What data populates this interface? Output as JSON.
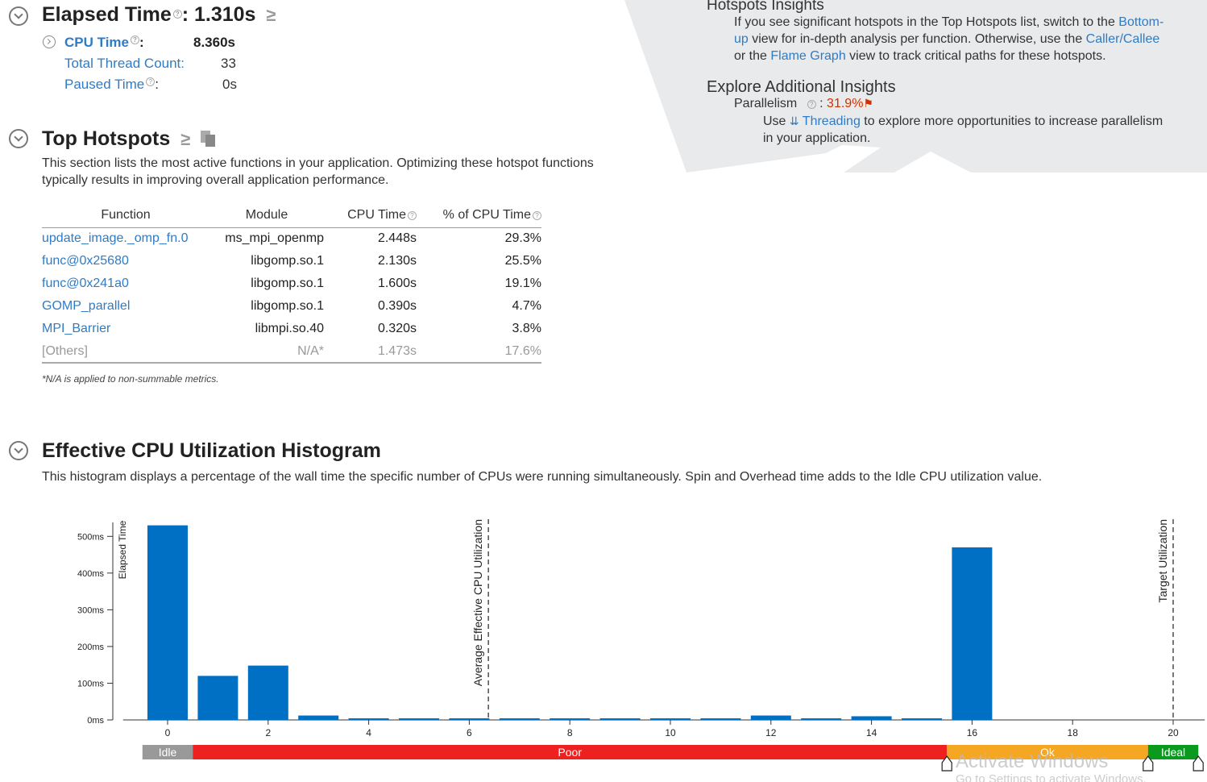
{
  "summary": {
    "elapsed_label": "Elapsed Time",
    "elapsed_value": ": 1.310s",
    "cpu_time_label": "CPU Time",
    "cpu_time_value": "8.360s",
    "thread_count_label": "Total Thread Count:",
    "thread_count_value": "33",
    "paused_label": "Paused Time",
    "paused_value": "0s"
  },
  "insights": {
    "title": "Hotspots Insights",
    "text_1": "If you see significant hotspots in the Top Hotspots list, switch to the ",
    "link_bottom_up_1": "Bottom-",
    "link_bottom_up_2": "up",
    "text_2": " view for in-depth analysis per function. Otherwise, use the ",
    "link_caller_callee": "Caller/Callee",
    "text_3": "or the ",
    "link_flame_graph": "Flame Graph",
    "text_4": " view to track critical paths for these hotspots.",
    "explore_title": "Explore Additional Insights",
    "parallelism_label": "Parallelism",
    "parallelism_value": "31.9%",
    "use_word": "Use ",
    "threading_link": "Threading",
    "threading_text_1": " to explore more opportunities to increase parallelism",
    "threading_text_2": "in your application.",
    "colors": {
      "panel_bg": "#e9eaeb",
      "warning_red": "#cc3300"
    }
  },
  "hotspots": {
    "title": "Top Hotspots",
    "desc_1": "This section lists the most active functions in your application. Optimizing these hotspot functions",
    "desc_2": "typically results in improving overall application performance.",
    "columns": [
      "Function",
      "Module",
      "CPU Time",
      "% of CPU Time"
    ],
    "rows": [
      {
        "fn": "update_image._omp_fn.0",
        "module": "ms_mpi_openmp",
        "cpu": "2.448s",
        "pct": "29.3%"
      },
      {
        "fn": "func@0x25680",
        "module": "libgomp.so.1",
        "cpu": "2.130s",
        "pct": "25.5%"
      },
      {
        "fn": "func@0x241a0",
        "module": "libgomp.so.1",
        "cpu": "1.600s",
        "pct": "19.1%"
      },
      {
        "fn": "GOMP_parallel",
        "module": "libgomp.so.1",
        "cpu": "0.390s",
        "pct": "4.7%"
      },
      {
        "fn": "MPI_Barrier",
        "module": "libmpi.so.40",
        "cpu": "0.320s",
        "pct": "3.8%"
      },
      {
        "fn": "[Others]",
        "module": "N/A*",
        "cpu": "1.473s",
        "pct": "17.6%"
      }
    ],
    "footnote": "*N/A is applied to non-summable metrics."
  },
  "histogram": {
    "title": "Effective CPU Utilization Histogram",
    "desc": "This histogram displays a percentage of the wall time the specific number of CPUs were running simultaneously. Spin and Overhead time adds to the Idle CPU utilization value."
  },
  "chart_data": {
    "type": "bar",
    "ylabel": "Elapsed Time",
    "y_unit": "ms",
    "ylim": [
      0,
      550
    ],
    "yticks": [
      "0ms",
      "100ms",
      "200ms",
      "300ms",
      "400ms",
      "500ms"
    ],
    "xlim": [
      -0.5,
      20.5
    ],
    "xticks": [
      "0",
      "2",
      "4",
      "6",
      "8",
      "10",
      "12",
      "14",
      "16",
      "18",
      "20"
    ],
    "categories": [
      "0",
      "1",
      "2",
      "3",
      "4",
      "5",
      "6",
      "7",
      "8",
      "9",
      "10",
      "11",
      "12",
      "13",
      "14",
      "15",
      "16"
    ],
    "values": [
      530,
      120,
      148,
      12,
      3,
      3,
      3,
      3,
      3,
      3,
      3,
      3,
      12,
      3,
      10,
      3,
      470
    ],
    "bar_color": "#0070c5",
    "markers": [
      {
        "label": "Average Effective CPU Utilization",
        "x": 6.38
      },
      {
        "label": "Target Utilization",
        "x": 20
      }
    ],
    "zones": [
      {
        "label": "Idle",
        "from": -0.5,
        "to": 0.5,
        "color": "#999999"
      },
      {
        "label": "Poor",
        "from": 0.5,
        "to": 15.5,
        "color": "#ee2121"
      },
      {
        "label": "Ok",
        "from": 15.5,
        "to": 19.5,
        "color": "#f5a623"
      },
      {
        "label": "Ideal",
        "from": 19.5,
        "to": 20.5,
        "color": "#0a9a1e"
      }
    ]
  },
  "watermark": {
    "line_1": "Activate Windows",
    "line_2": "Go to Settings to activate Windows."
  }
}
